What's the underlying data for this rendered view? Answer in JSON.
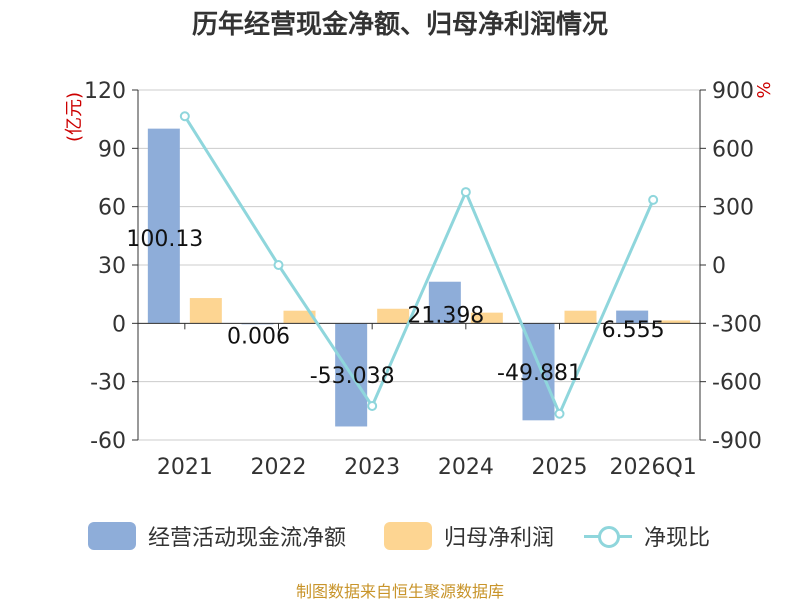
{
  "chart_data": {
    "type": "bar+line",
    "title": "历年经营现金净额、归母净利润情况",
    "categories": [
      "2021",
      "2022",
      "2023",
      "2024",
      "2025",
      "2026Q1"
    ],
    "left_axis": {
      "unit": "(亿元)",
      "min": -60,
      "max": 120,
      "ticks": [
        120,
        90,
        60,
        30,
        0,
        -30,
        -60
      ]
    },
    "right_axis": {
      "unit": "%",
      "min": -900,
      "max": 900,
      "ticks": [
        900,
        600,
        300,
        0,
        -300,
        -600,
        -900
      ]
    },
    "series": [
      {
        "name": "经营活动现金流净额",
        "type": "bar",
        "axis": "left",
        "color": "#8eadd9",
        "values": [
          100.13,
          0.006,
          -53.038,
          21.398,
          -49.881,
          6.555
        ],
        "labels": [
          "100.13",
          "0.006",
          "-53.038",
          "21.398",
          "-49.881",
          "6.555"
        ]
      },
      {
        "name": "归母净利润",
        "type": "bar",
        "axis": "left",
        "color": "#fdd592",
        "values": [
          13.0,
          6.5,
          7.5,
          5.5,
          6.5,
          1.5
        ]
      },
      {
        "name": "净现比",
        "type": "line",
        "axis": "right",
        "color": "#8fd6dc",
        "values": [
          765,
          0,
          -725,
          375,
          -765,
          335
        ]
      }
    ],
    "grid": true,
    "legend_position": "bottom"
  },
  "source": "制图数据来自恒生聚源数据库"
}
